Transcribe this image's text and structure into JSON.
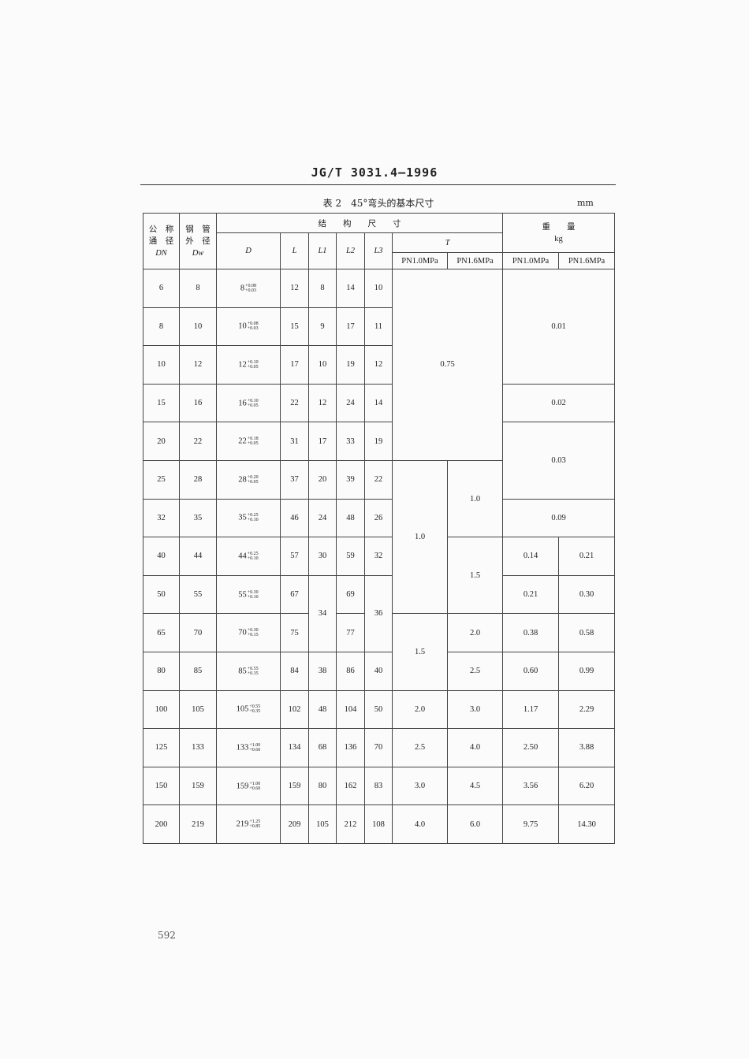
{
  "standard_code": "JG/T 3031.4—1996",
  "caption": "表 2　45°弯头的基本尺寸",
  "unit": "mm",
  "header": {
    "dn": [
      "公　称",
      "通　径",
      "DN"
    ],
    "dw": [
      "钢　管",
      "外　径",
      "Dw"
    ],
    "structure": "结　　构　　尺　　寸",
    "weight": "重　　量",
    "weight_unit": "kg",
    "D": "D",
    "L": "L",
    "L1": "L1",
    "L2": "L2",
    "L3": "L3",
    "T": "T",
    "pn10": "PN1.0MPa",
    "pn16": "PN1.6MPa"
  },
  "rows": [
    [
      "6",
      "8",
      {
        "base": "8",
        "upper": "+0.08",
        "lower": "+0.03"
      },
      "12",
      "8",
      "14",
      "10",
      "0.75",
      "0.01"
    ],
    [
      "8",
      "10",
      {
        "base": "10",
        "upper": "+0.08",
        "lower": "+0.03"
      },
      "15",
      "9",
      "17",
      "11"
    ],
    [
      "10",
      "12",
      {
        "base": "12",
        "upper": "+0.10",
        "lower": "+0.05"
      },
      "17",
      "10",
      "19",
      "12"
    ],
    [
      "15",
      "16",
      {
        "base": "16",
        "upper": "+0.10",
        "lower": "+0.05"
      },
      "22",
      "12",
      "24",
      "14",
      "0.02"
    ],
    [
      "20",
      "22",
      {
        "base": "22",
        "upper": "+0.18",
        "lower": "+0.05"
      },
      "31",
      "17",
      "33",
      "19",
      "0.03"
    ],
    [
      "25",
      "28",
      {
        "base": "28",
        "upper": "+0.20",
        "lower": "+0.05"
      },
      "37",
      "20",
      "39",
      "22",
      "1.0",
      "1.0"
    ],
    [
      "32",
      "35",
      {
        "base": "35",
        "upper": "+0.25",
        "lower": "+0.10"
      },
      "46",
      "24",
      "48",
      "26",
      "0.09"
    ],
    [
      "40",
      "44",
      {
        "base": "44",
        "upper": "+0.25",
        "lower": "+0.10"
      },
      "57",
      "30",
      "59",
      "32",
      "1.5",
      "0.14",
      "0.21"
    ],
    [
      "50",
      "55",
      {
        "base": "55",
        "upper": "+0.30",
        "lower": "+0.10"
      },
      "67",
      "34",
      "69",
      "36",
      "0.21",
      "0.30"
    ],
    [
      "65",
      "70",
      {
        "base": "70",
        "upper": "+0.30",
        "lower": "+0.15"
      },
      "75",
      "77",
      "1.5",
      "2.0",
      "0.38",
      "0.58"
    ],
    [
      "80",
      "85",
      {
        "base": "85",
        "upper": "+0.55",
        "lower": "+0.35"
      },
      "84",
      "38",
      "86",
      "40",
      "2.5",
      "0.60",
      "0.99"
    ],
    [
      "100",
      "105",
      {
        "base": "105",
        "upper": "+0.55",
        "lower": "+0.35"
      },
      "102",
      "48",
      "104",
      "50",
      "2.0",
      "3.0",
      "1.17",
      "2.29"
    ],
    [
      "125",
      "133",
      {
        "base": "133",
        "upper": "+1.00",
        "lower": "+0.60"
      },
      "134",
      "68",
      "136",
      "70",
      "2.5",
      "4.0",
      "2.50",
      "3.88"
    ],
    [
      "150",
      "159",
      {
        "base": "159",
        "upper": "+1.00",
        "lower": "+0.60"
      },
      "159",
      "80",
      "162",
      "83",
      "3.0",
      "4.5",
      "3.56",
      "6.20"
    ],
    [
      "200",
      "219",
      {
        "base": "219",
        "upper": "+1.25",
        "lower": "+0.85"
      },
      "209",
      "105",
      "212",
      "108",
      "4.0",
      "6.0",
      "9.75",
      "14.30"
    ]
  ],
  "page_number": "592"
}
